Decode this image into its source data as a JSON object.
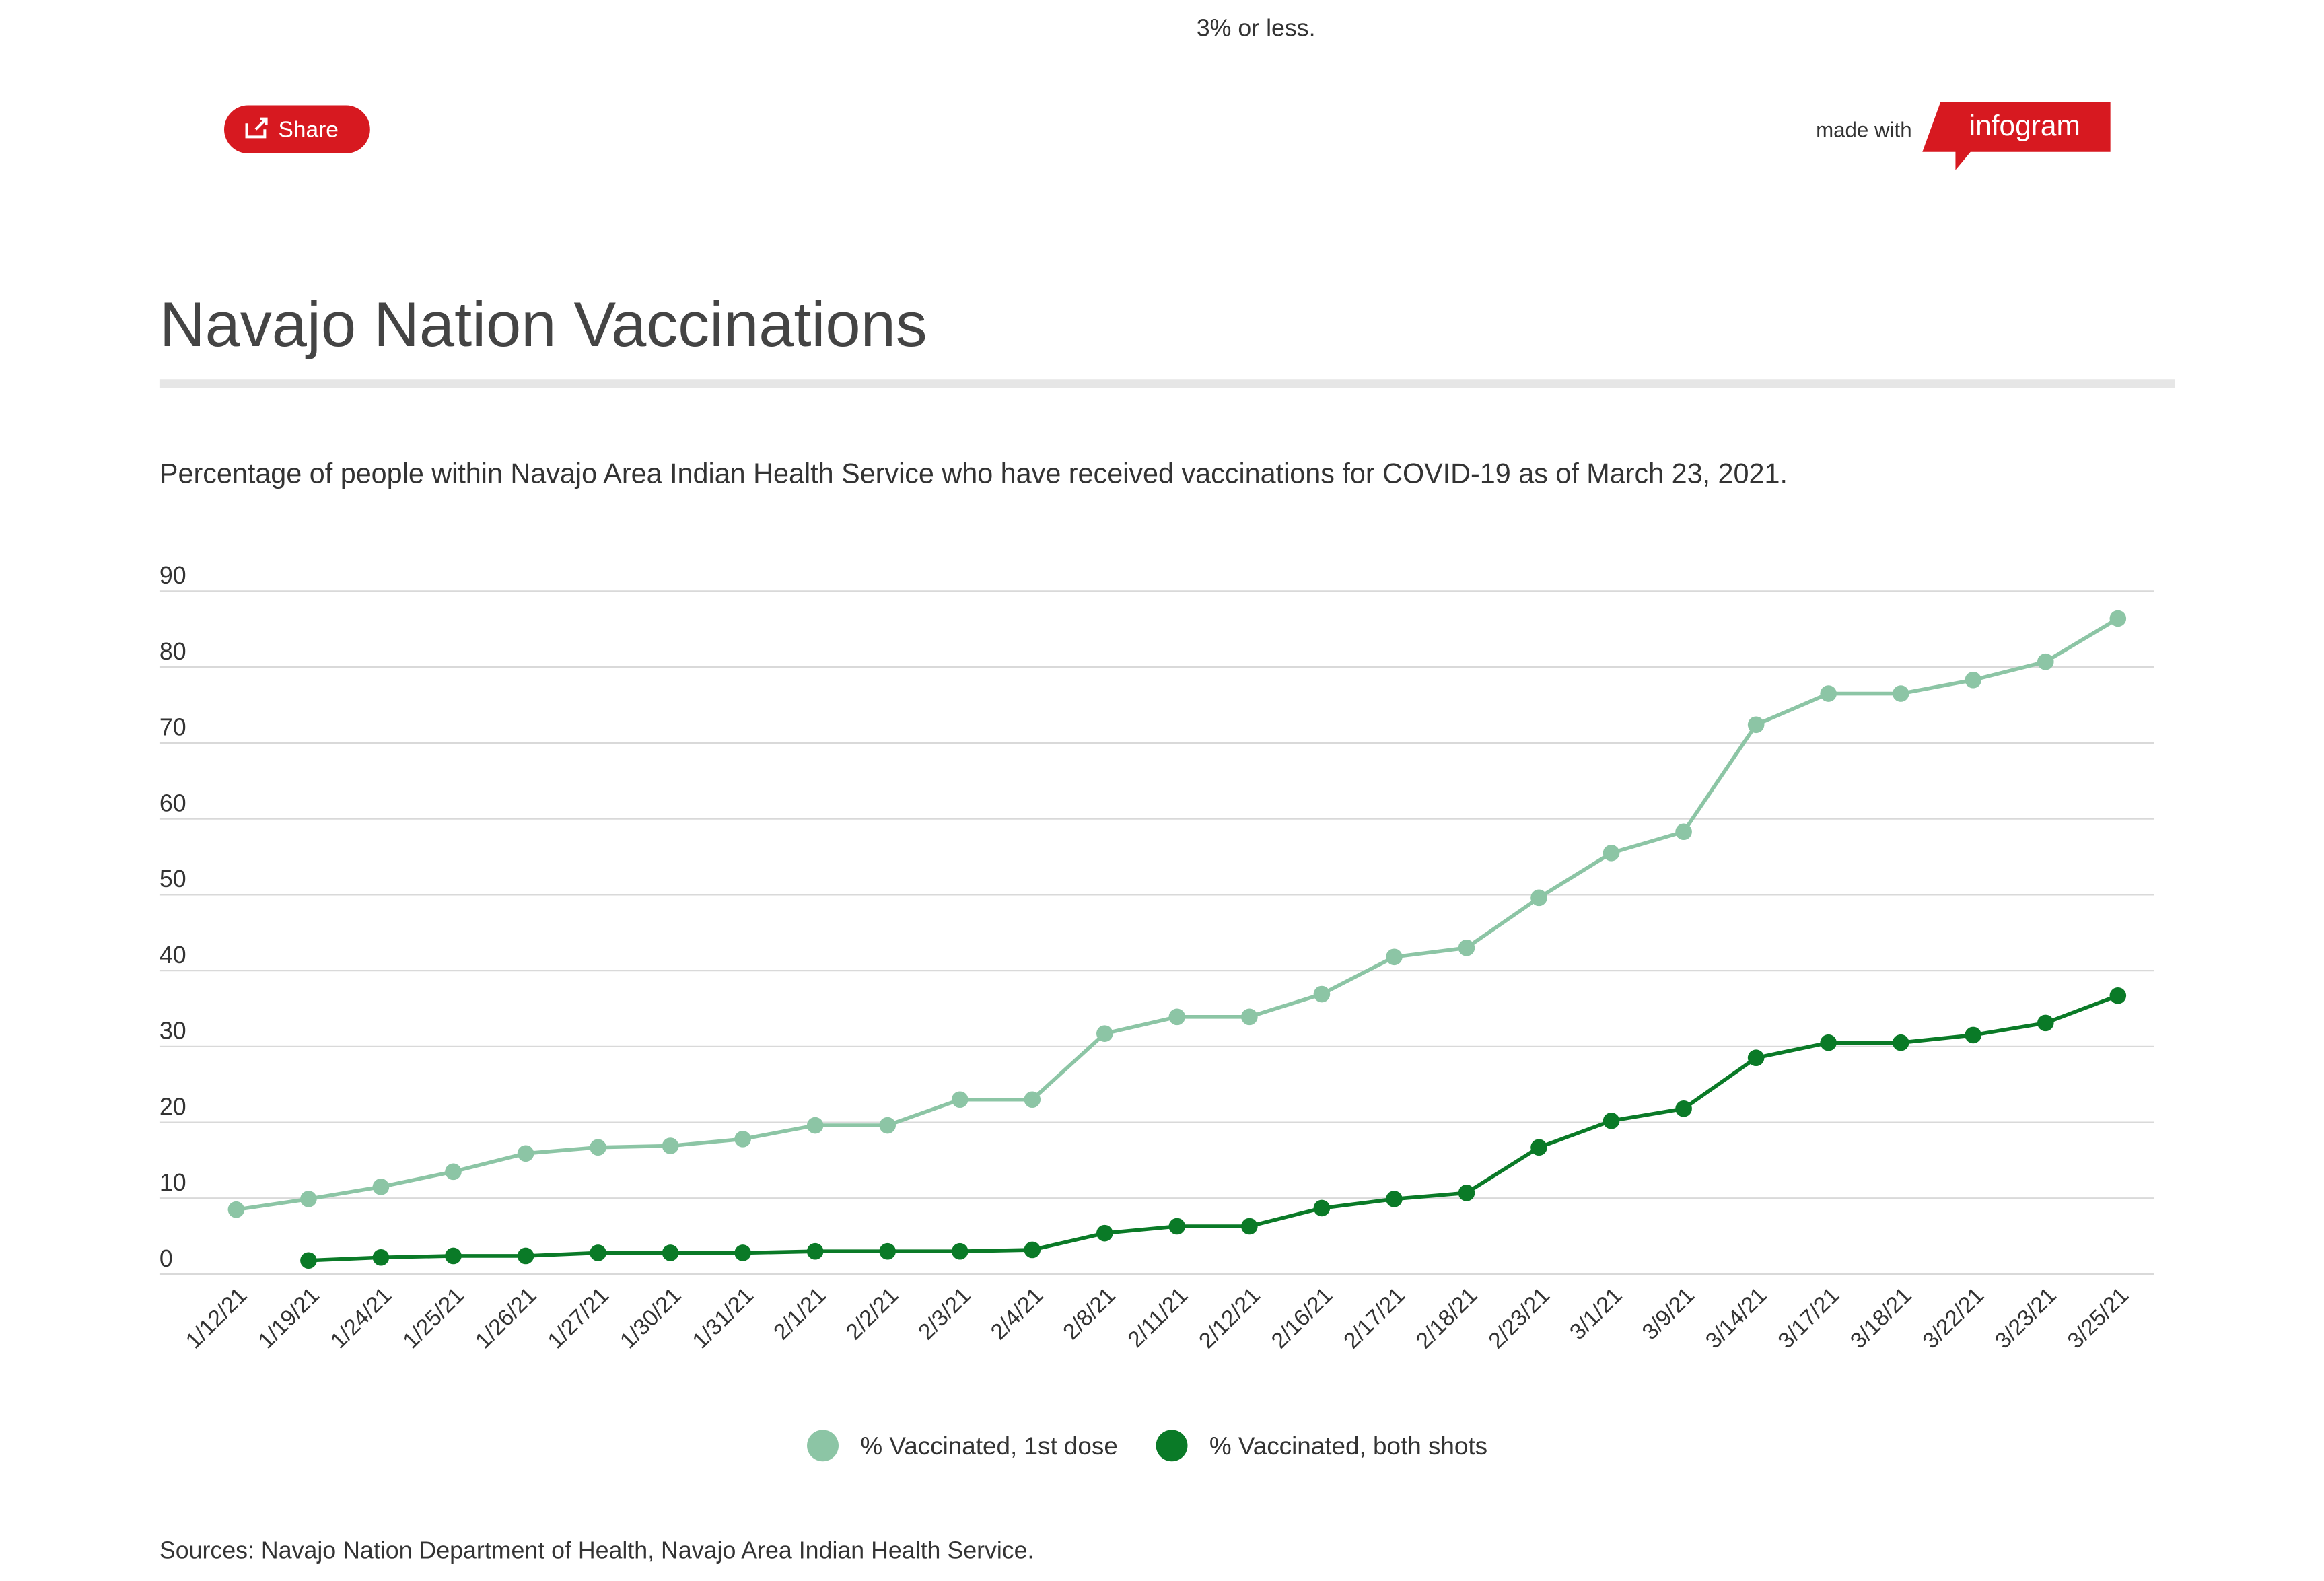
{
  "header": {
    "note": "3% or less.",
    "share": "Share",
    "made_with": "made with",
    "brand": "infogram"
  },
  "chart_data": {
    "type": "line",
    "title": "Navajo Nation Vaccinations",
    "subtitle": "Percentage of people within Navajo Area Indian Health Service who have received vaccinations for COVID-19 as of March 23, 2021.",
    "source": "Sources: Navajo Nation Department of Health, Navajo Area Indian Health Service.",
    "categories": [
      "1/12/21",
      "1/19/21",
      "1/24/21",
      "1/25/21",
      "1/26/21",
      "1/27/21",
      "1/30/21",
      "1/31/21",
      "2/1/21",
      "2/2/21",
      "2/3/21",
      "2/4/21",
      "2/8/21",
      "2/11/21",
      "2/12/21",
      "2/16/21",
      "2/17/21",
      "2/18/21",
      "2/23/21",
      "3/1/21",
      "3/9/21",
      "3/14/21",
      "3/17/21",
      "3/18/21",
      "3/22/21",
      "3/23/21",
      "3/25/21"
    ],
    "series": [
      {
        "name": "% Vaccinated, 1st dose",
        "color": "#8cc5a5",
        "values": [
          8.5,
          9.9,
          11.5,
          13.5,
          15.9,
          16.7,
          16.9,
          17.8,
          19.6,
          19.6,
          23,
          23,
          31.7,
          33.9,
          33.9,
          36.9,
          41.8,
          43,
          49.6,
          55.5,
          58.3,
          72.4,
          76.5,
          76.5,
          78.3,
          80.7,
          86.4
        ]
      },
      {
        "name": "% Vaccinated, both shots",
        "color": "#0a7a27",
        "values": [
          null,
          1.8,
          2.2,
          2.4,
          2.4,
          2.8,
          2.8,
          2.8,
          3,
          3,
          3,
          3.2,
          5.4,
          6.3,
          6.3,
          8.7,
          9.9,
          10.7,
          16.7,
          20.2,
          21.8,
          28.5,
          30.5,
          30.5,
          31.5,
          33.1,
          36.7
        ]
      }
    ],
    "ylim": [
      0,
      90
    ],
    "yticks": [
      0,
      10,
      20,
      30,
      40,
      50,
      60,
      70,
      80,
      90
    ],
    "grid": true,
    "legend": "bottom"
  }
}
